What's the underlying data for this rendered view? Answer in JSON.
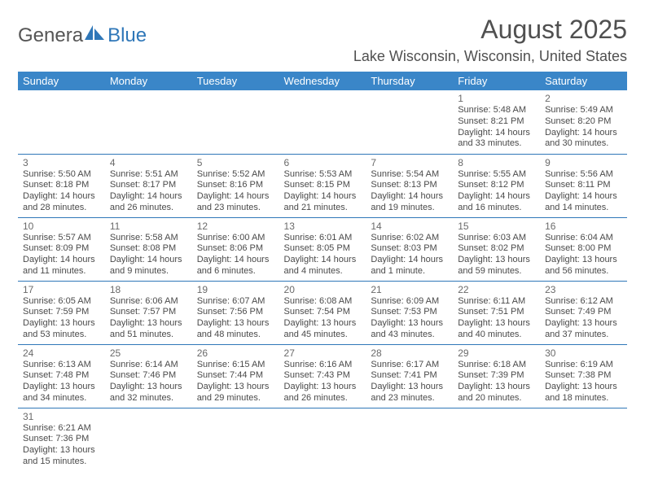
{
  "brand": {
    "part1": "Genera",
    "part2": "Blue"
  },
  "title": "August 2025",
  "location": "Lake Wisconsin, Wisconsin, United States",
  "colors": {
    "header_bg": "#3a86c8",
    "header_text": "#ffffff",
    "rule": "#2f77b8",
    "brand_blue": "#2f77b8",
    "text": "#4a4a4a"
  },
  "fonts": {
    "title_size": 32,
    "location_size": 18,
    "dayhead_size": 13,
    "daynum_size": 12,
    "cell_size": 11
  },
  "day_headers": [
    "Sunday",
    "Monday",
    "Tuesday",
    "Wednesday",
    "Thursday",
    "Friday",
    "Saturday"
  ],
  "weeks": [
    [
      null,
      null,
      null,
      null,
      null,
      {
        "n": "1",
        "sr": "Sunrise: 5:48 AM",
        "ss": "Sunset: 8:21 PM",
        "d1": "Daylight: 14 hours",
        "d2": "and 33 minutes."
      },
      {
        "n": "2",
        "sr": "Sunrise: 5:49 AM",
        "ss": "Sunset: 8:20 PM",
        "d1": "Daylight: 14 hours",
        "d2": "and 30 minutes."
      }
    ],
    [
      {
        "n": "3",
        "sr": "Sunrise: 5:50 AM",
        "ss": "Sunset: 8:18 PM",
        "d1": "Daylight: 14 hours",
        "d2": "and 28 minutes."
      },
      {
        "n": "4",
        "sr": "Sunrise: 5:51 AM",
        "ss": "Sunset: 8:17 PM",
        "d1": "Daylight: 14 hours",
        "d2": "and 26 minutes."
      },
      {
        "n": "5",
        "sr": "Sunrise: 5:52 AM",
        "ss": "Sunset: 8:16 PM",
        "d1": "Daylight: 14 hours",
        "d2": "and 23 minutes."
      },
      {
        "n": "6",
        "sr": "Sunrise: 5:53 AM",
        "ss": "Sunset: 8:15 PM",
        "d1": "Daylight: 14 hours",
        "d2": "and 21 minutes."
      },
      {
        "n": "7",
        "sr": "Sunrise: 5:54 AM",
        "ss": "Sunset: 8:13 PM",
        "d1": "Daylight: 14 hours",
        "d2": "and 19 minutes."
      },
      {
        "n": "8",
        "sr": "Sunrise: 5:55 AM",
        "ss": "Sunset: 8:12 PM",
        "d1": "Daylight: 14 hours",
        "d2": "and 16 minutes."
      },
      {
        "n": "9",
        "sr": "Sunrise: 5:56 AM",
        "ss": "Sunset: 8:11 PM",
        "d1": "Daylight: 14 hours",
        "d2": "and 14 minutes."
      }
    ],
    [
      {
        "n": "10",
        "sr": "Sunrise: 5:57 AM",
        "ss": "Sunset: 8:09 PM",
        "d1": "Daylight: 14 hours",
        "d2": "and 11 minutes."
      },
      {
        "n": "11",
        "sr": "Sunrise: 5:58 AM",
        "ss": "Sunset: 8:08 PM",
        "d1": "Daylight: 14 hours",
        "d2": "and 9 minutes."
      },
      {
        "n": "12",
        "sr": "Sunrise: 6:00 AM",
        "ss": "Sunset: 8:06 PM",
        "d1": "Daylight: 14 hours",
        "d2": "and 6 minutes."
      },
      {
        "n": "13",
        "sr": "Sunrise: 6:01 AM",
        "ss": "Sunset: 8:05 PM",
        "d1": "Daylight: 14 hours",
        "d2": "and 4 minutes."
      },
      {
        "n": "14",
        "sr": "Sunrise: 6:02 AM",
        "ss": "Sunset: 8:03 PM",
        "d1": "Daylight: 14 hours",
        "d2": "and 1 minute."
      },
      {
        "n": "15",
        "sr": "Sunrise: 6:03 AM",
        "ss": "Sunset: 8:02 PM",
        "d1": "Daylight: 13 hours",
        "d2": "and 59 minutes."
      },
      {
        "n": "16",
        "sr": "Sunrise: 6:04 AM",
        "ss": "Sunset: 8:00 PM",
        "d1": "Daylight: 13 hours",
        "d2": "and 56 minutes."
      }
    ],
    [
      {
        "n": "17",
        "sr": "Sunrise: 6:05 AM",
        "ss": "Sunset: 7:59 PM",
        "d1": "Daylight: 13 hours",
        "d2": "and 53 minutes."
      },
      {
        "n": "18",
        "sr": "Sunrise: 6:06 AM",
        "ss": "Sunset: 7:57 PM",
        "d1": "Daylight: 13 hours",
        "d2": "and 51 minutes."
      },
      {
        "n": "19",
        "sr": "Sunrise: 6:07 AM",
        "ss": "Sunset: 7:56 PM",
        "d1": "Daylight: 13 hours",
        "d2": "and 48 minutes."
      },
      {
        "n": "20",
        "sr": "Sunrise: 6:08 AM",
        "ss": "Sunset: 7:54 PM",
        "d1": "Daylight: 13 hours",
        "d2": "and 45 minutes."
      },
      {
        "n": "21",
        "sr": "Sunrise: 6:09 AM",
        "ss": "Sunset: 7:53 PM",
        "d1": "Daylight: 13 hours",
        "d2": "and 43 minutes."
      },
      {
        "n": "22",
        "sr": "Sunrise: 6:11 AM",
        "ss": "Sunset: 7:51 PM",
        "d1": "Daylight: 13 hours",
        "d2": "and 40 minutes."
      },
      {
        "n": "23",
        "sr": "Sunrise: 6:12 AM",
        "ss": "Sunset: 7:49 PM",
        "d1": "Daylight: 13 hours",
        "d2": "and 37 minutes."
      }
    ],
    [
      {
        "n": "24",
        "sr": "Sunrise: 6:13 AM",
        "ss": "Sunset: 7:48 PM",
        "d1": "Daylight: 13 hours",
        "d2": "and 34 minutes."
      },
      {
        "n": "25",
        "sr": "Sunrise: 6:14 AM",
        "ss": "Sunset: 7:46 PM",
        "d1": "Daylight: 13 hours",
        "d2": "and 32 minutes."
      },
      {
        "n": "26",
        "sr": "Sunrise: 6:15 AM",
        "ss": "Sunset: 7:44 PM",
        "d1": "Daylight: 13 hours",
        "d2": "and 29 minutes."
      },
      {
        "n": "27",
        "sr": "Sunrise: 6:16 AM",
        "ss": "Sunset: 7:43 PM",
        "d1": "Daylight: 13 hours",
        "d2": "and 26 minutes."
      },
      {
        "n": "28",
        "sr": "Sunrise: 6:17 AM",
        "ss": "Sunset: 7:41 PM",
        "d1": "Daylight: 13 hours",
        "d2": "and 23 minutes."
      },
      {
        "n": "29",
        "sr": "Sunrise: 6:18 AM",
        "ss": "Sunset: 7:39 PM",
        "d1": "Daylight: 13 hours",
        "d2": "and 20 minutes."
      },
      {
        "n": "30",
        "sr": "Sunrise: 6:19 AM",
        "ss": "Sunset: 7:38 PM",
        "d1": "Daylight: 13 hours",
        "d2": "and 18 minutes."
      }
    ],
    [
      {
        "n": "31",
        "sr": "Sunrise: 6:21 AM",
        "ss": "Sunset: 7:36 PM",
        "d1": "Daylight: 13 hours",
        "d2": "and 15 minutes."
      },
      null,
      null,
      null,
      null,
      null,
      null
    ]
  ]
}
